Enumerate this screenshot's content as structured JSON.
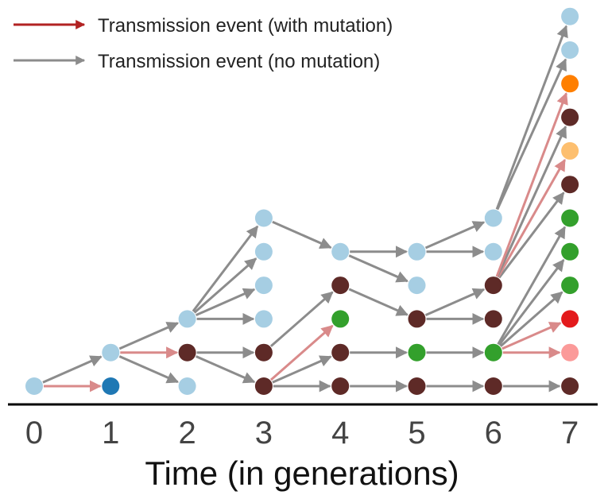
{
  "legend": {
    "mutation_label": "Transmission event (with mutation)",
    "no_mutation_label": "Transmission event (no mutation)",
    "mutation_color": "#b22222",
    "no_mutation_color": "#8c8c8c"
  },
  "axis": {
    "title": "Time (in generations)",
    "ticks": [
      "0",
      "1",
      "2",
      "3",
      "4",
      "5",
      "6",
      "7"
    ],
    "line_color": "#000000"
  },
  "colors": {
    "light_blue": "#a6cee3",
    "dark_blue": "#1f78b4",
    "dark_brown": "#5e2a27",
    "green": "#33a02c",
    "orange": "#ff7f00",
    "light_orange": "#fdbf6f",
    "red": "#e31a1c",
    "pink": "#fb9a99"
  },
  "chart_data": {
    "type": "diagram",
    "description_x": "generation",
    "nodes": [
      {
        "id": "a",
        "gen": 0,
        "level": 0,
        "color": "light_blue"
      },
      {
        "id": "b",
        "gen": 1,
        "level": 0,
        "color": "dark_blue"
      },
      {
        "id": "c",
        "gen": 1,
        "level": 1,
        "color": "light_blue"
      },
      {
        "id": "d",
        "gen": 2,
        "level": 0,
        "color": "light_blue"
      },
      {
        "id": "e",
        "gen": 2,
        "level": 1,
        "color": "dark_brown"
      },
      {
        "id": "f",
        "gen": 2,
        "level": 2,
        "color": "light_blue"
      },
      {
        "id": "g",
        "gen": 3,
        "level": 0,
        "color": "dark_brown"
      },
      {
        "id": "h",
        "gen": 3,
        "level": 1,
        "color": "dark_brown"
      },
      {
        "id": "i",
        "gen": 3,
        "level": 2,
        "color": "light_blue"
      },
      {
        "id": "j",
        "gen": 3,
        "level": 3,
        "color": "light_blue"
      },
      {
        "id": "k",
        "gen": 3,
        "level": 4,
        "color": "light_blue"
      },
      {
        "id": "l",
        "gen": 3,
        "level": 5,
        "color": "light_blue"
      },
      {
        "id": "m",
        "gen": 4,
        "level": 0,
        "color": "dark_brown"
      },
      {
        "id": "n",
        "gen": 4,
        "level": 1,
        "color": "dark_brown"
      },
      {
        "id": "o",
        "gen": 4,
        "level": 2,
        "color": "green"
      },
      {
        "id": "p",
        "gen": 4,
        "level": 3,
        "color": "dark_brown"
      },
      {
        "id": "q",
        "gen": 4,
        "level": 4,
        "color": "light_blue"
      },
      {
        "id": "r",
        "gen": 5,
        "level": 0,
        "color": "dark_brown"
      },
      {
        "id": "s",
        "gen": 5,
        "level": 1,
        "color": "green"
      },
      {
        "id": "t",
        "gen": 5,
        "level": 2,
        "color": "dark_brown"
      },
      {
        "id": "u",
        "gen": 5,
        "level": 3,
        "color": "light_blue"
      },
      {
        "id": "v",
        "gen": 5,
        "level": 4,
        "color": "light_blue"
      },
      {
        "id": "w",
        "gen": 6,
        "level": 0,
        "color": "dark_brown"
      },
      {
        "id": "x",
        "gen": 6,
        "level": 1,
        "color": "green"
      },
      {
        "id": "y",
        "gen": 6,
        "level": 2,
        "color": "dark_brown"
      },
      {
        "id": "z",
        "gen": 6,
        "level": 3,
        "color": "dark_brown"
      },
      {
        "id": "aa",
        "gen": 6,
        "level": 4,
        "color": "light_blue"
      },
      {
        "id": "ab",
        "gen": 6,
        "level": 5,
        "color": "light_blue"
      },
      {
        "id": "ac",
        "gen": 7,
        "level": 0,
        "color": "dark_brown"
      },
      {
        "id": "ad",
        "gen": 7,
        "level": 1,
        "color": "pink"
      },
      {
        "id": "ae",
        "gen": 7,
        "level": 2,
        "color": "red"
      },
      {
        "id": "af",
        "gen": 7,
        "level": 3,
        "color": "green"
      },
      {
        "id": "ag",
        "gen": 7,
        "level": 4,
        "color": "green"
      },
      {
        "id": "ah",
        "gen": 7,
        "level": 5,
        "color": "green"
      },
      {
        "id": "ai",
        "gen": 7,
        "level": 6,
        "color": "dark_brown"
      },
      {
        "id": "aj",
        "gen": 7,
        "level": 7,
        "color": "light_orange"
      },
      {
        "id": "ak",
        "gen": 7,
        "level": 8,
        "color": "dark_brown"
      },
      {
        "id": "al",
        "gen": 7,
        "level": 9,
        "color": "orange"
      },
      {
        "id": "am",
        "gen": 7,
        "level": 10,
        "color": "light_blue"
      },
      {
        "id": "an",
        "gen": 7,
        "level": 11,
        "color": "light_blue"
      }
    ],
    "edges": [
      {
        "from": "a",
        "to": "b",
        "mutation": true
      },
      {
        "from": "a",
        "to": "c",
        "mutation": false
      },
      {
        "from": "c",
        "to": "d",
        "mutation": false
      },
      {
        "from": "c",
        "to": "e",
        "mutation": true
      },
      {
        "from": "c",
        "to": "f",
        "mutation": false
      },
      {
        "from": "e",
        "to": "g",
        "mutation": false
      },
      {
        "from": "e",
        "to": "h",
        "mutation": false
      },
      {
        "from": "f",
        "to": "i",
        "mutation": false
      },
      {
        "from": "f",
        "to": "j",
        "mutation": false
      },
      {
        "from": "f",
        "to": "k",
        "mutation": false
      },
      {
        "from": "f",
        "to": "l",
        "mutation": false
      },
      {
        "from": "g",
        "to": "m",
        "mutation": false
      },
      {
        "from": "g",
        "to": "n",
        "mutation": false
      },
      {
        "from": "g",
        "to": "o",
        "mutation": true
      },
      {
        "from": "h",
        "to": "p",
        "mutation": false
      },
      {
        "from": "l",
        "to": "q",
        "mutation": false
      },
      {
        "from": "m",
        "to": "r",
        "mutation": false
      },
      {
        "from": "n",
        "to": "s",
        "mutation": false
      },
      {
        "from": "p",
        "to": "t",
        "mutation": false
      },
      {
        "from": "q",
        "to": "u",
        "mutation": false
      },
      {
        "from": "q",
        "to": "v",
        "mutation": false
      },
      {
        "from": "r",
        "to": "w",
        "mutation": false
      },
      {
        "from": "s",
        "to": "x",
        "mutation": false
      },
      {
        "from": "t",
        "to": "y",
        "mutation": false
      },
      {
        "from": "t",
        "to": "z",
        "mutation": false
      },
      {
        "from": "v",
        "to": "aa",
        "mutation": false
      },
      {
        "from": "v",
        "to": "ab",
        "mutation": false
      },
      {
        "from": "w",
        "to": "ac",
        "mutation": false
      },
      {
        "from": "x",
        "to": "ad",
        "mutation": true
      },
      {
        "from": "x",
        "to": "ae",
        "mutation": true
      },
      {
        "from": "x",
        "to": "af",
        "mutation": false
      },
      {
        "from": "x",
        "to": "ag",
        "mutation": false
      },
      {
        "from": "x",
        "to": "ah",
        "mutation": false
      },
      {
        "from": "z",
        "to": "ai",
        "mutation": false
      },
      {
        "from": "z",
        "to": "aj",
        "mutation": true
      },
      {
        "from": "z",
        "to": "ak",
        "mutation": false
      },
      {
        "from": "z",
        "to": "al",
        "mutation": true
      },
      {
        "from": "ab",
        "to": "am",
        "mutation": false
      },
      {
        "from": "ab",
        "to": "an",
        "mutation": false
      }
    ]
  }
}
